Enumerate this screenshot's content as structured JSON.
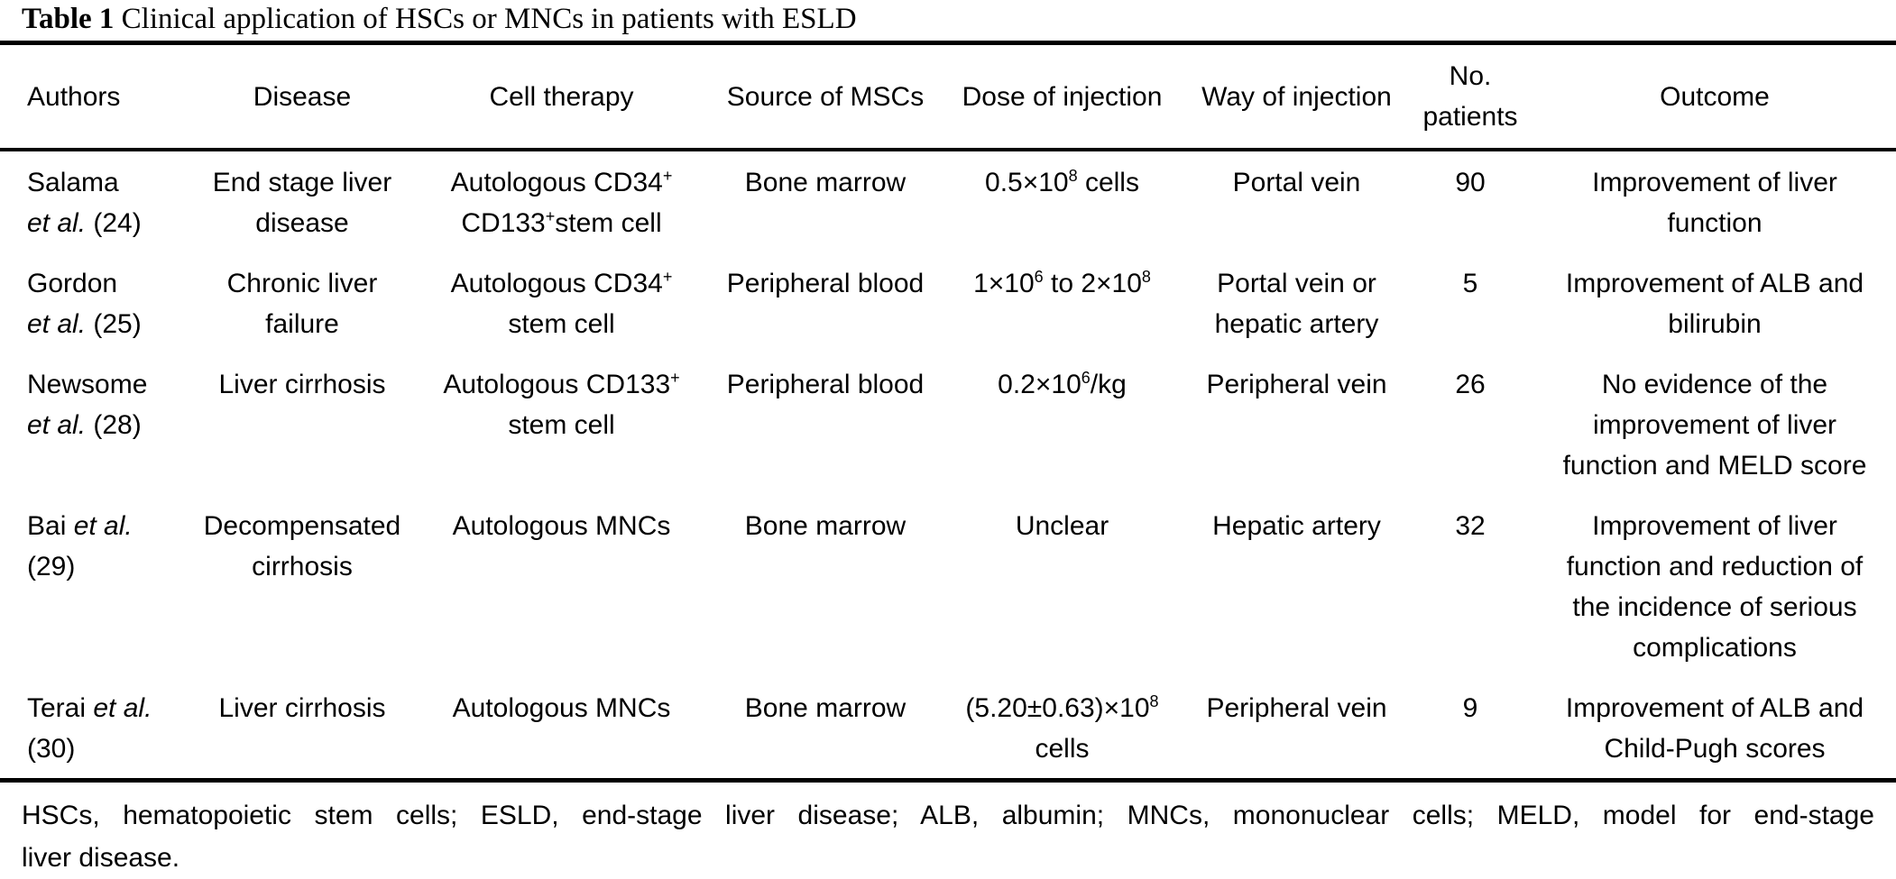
{
  "caption": {
    "label": "Table 1",
    "text": " Clinical application of HSCs or MNCs in patients with ESLD"
  },
  "table": {
    "columns": [
      {
        "key": "authors",
        "label": "Authors"
      },
      {
        "key": "disease",
        "label": "Disease"
      },
      {
        "key": "cell_therapy",
        "label": "Cell therapy"
      },
      {
        "key": "source",
        "label": "Source of MSCs"
      },
      {
        "key": "dose",
        "label": "Dose of injection"
      },
      {
        "key": "way",
        "label": "Way of injection"
      },
      {
        "key": "patients",
        "label": [
          "No.",
          "patients"
        ]
      },
      {
        "key": "outcome",
        "label": "Outcome"
      }
    ],
    "rows": [
      {
        "authors": [
          [
            {
              "t": "Salama"
            }
          ],
          [
            {
              "t": "et al.",
              "i": true
            },
            {
              "t": " (24)"
            }
          ]
        ],
        "disease": [
          [
            {
              "t": "End stage liver"
            }
          ],
          [
            {
              "t": "disease"
            }
          ]
        ],
        "cell_therapy": [
          [
            {
              "t": "Autologous CD34"
            },
            {
              "t": "+",
              "s": true
            }
          ],
          [
            {
              "t": "CD133"
            },
            {
              "t": "+",
              "s": true
            },
            {
              "t": "stem cell"
            }
          ]
        ],
        "source": [
          [
            {
              "t": "Bone marrow"
            }
          ]
        ],
        "dose": [
          [
            {
              "t": "0.5×10"
            },
            {
              "t": "8",
              "s": true
            },
            {
              "t": " cells"
            }
          ]
        ],
        "way": [
          [
            {
              "t": "Portal vein"
            }
          ]
        ],
        "patients": [
          [
            {
              "t": "90"
            }
          ]
        ],
        "outcome": [
          [
            {
              "t": "Improvement of liver"
            }
          ],
          [
            {
              "t": "function"
            }
          ]
        ]
      },
      {
        "authors": [
          [
            {
              "t": "Gordon"
            }
          ],
          [
            {
              "t": "et al.",
              "i": true
            },
            {
              "t": " (25)"
            }
          ]
        ],
        "disease": [
          [
            {
              "t": "Chronic liver"
            }
          ],
          [
            {
              "t": "failure"
            }
          ]
        ],
        "cell_therapy": [
          [
            {
              "t": "Autologous CD34"
            },
            {
              "t": "+",
              "s": true
            }
          ],
          [
            {
              "t": "stem cell"
            }
          ]
        ],
        "source": [
          [
            {
              "t": "Peripheral blood"
            }
          ]
        ],
        "dose": [
          [
            {
              "t": "1×10"
            },
            {
              "t": "6",
              "s": true
            },
            {
              "t": " to 2×10"
            },
            {
              "t": "8",
              "s": true
            }
          ]
        ],
        "way": [
          [
            {
              "t": "Portal vein or"
            }
          ],
          [
            {
              "t": "hepatic artery"
            }
          ]
        ],
        "patients": [
          [
            {
              "t": "5"
            }
          ]
        ],
        "outcome": [
          [
            {
              "t": "Improvement of ALB and"
            }
          ],
          [
            {
              "t": "bilirubin"
            }
          ]
        ]
      },
      {
        "authors": [
          [
            {
              "t": "Newsome"
            }
          ],
          [
            {
              "t": "et al.",
              "i": true
            },
            {
              "t": " (28)"
            }
          ]
        ],
        "disease": [
          [
            {
              "t": "Liver cirrhosis"
            }
          ]
        ],
        "cell_therapy": [
          [
            {
              "t": "Autologous CD133"
            },
            {
              "t": "+",
              "s": true
            }
          ],
          [
            {
              "t": "stem cell"
            }
          ]
        ],
        "source": [
          [
            {
              "t": "Peripheral blood"
            }
          ]
        ],
        "dose": [
          [
            {
              "t": "0.2×10"
            },
            {
              "t": "6",
              "s": true
            },
            {
              "t": "/kg"
            }
          ]
        ],
        "way": [
          [
            {
              "t": "Peripheral vein"
            }
          ]
        ],
        "patients": [
          [
            {
              "t": "26"
            }
          ]
        ],
        "outcome": [
          [
            {
              "t": "No evidence of the"
            }
          ],
          [
            {
              "t": "improvement of liver"
            }
          ],
          [
            {
              "t": "function and MELD score"
            }
          ]
        ]
      },
      {
        "authors": [
          [
            {
              "t": "Bai "
            },
            {
              "t": "et al.",
              "i": true
            }
          ],
          [
            {
              "t": "(29)"
            }
          ]
        ],
        "disease": [
          [
            {
              "t": "Decompensated"
            }
          ],
          [
            {
              "t": "cirrhosis"
            }
          ]
        ],
        "cell_therapy": [
          [
            {
              "t": "Autologous MNCs"
            }
          ]
        ],
        "source": [
          [
            {
              "t": "Bone marrow"
            }
          ]
        ],
        "dose": [
          [
            {
              "t": "Unclear"
            }
          ]
        ],
        "way": [
          [
            {
              "t": "Hepatic artery"
            }
          ]
        ],
        "patients": [
          [
            {
              "t": "32"
            }
          ]
        ],
        "outcome": [
          [
            {
              "t": "Improvement of liver"
            }
          ],
          [
            {
              "t": "function and reduction of"
            }
          ],
          [
            {
              "t": "the incidence of serious"
            }
          ],
          [
            {
              "t": "complications"
            }
          ]
        ]
      },
      {
        "authors": [
          [
            {
              "t": "Terai "
            },
            {
              "t": "et al.",
              "i": true
            }
          ],
          [
            {
              "t": "(30)"
            }
          ]
        ],
        "disease": [
          [
            {
              "t": "Liver cirrhosis"
            }
          ]
        ],
        "cell_therapy": [
          [
            {
              "t": "Autologous MNCs"
            }
          ]
        ],
        "source": [
          [
            {
              "t": "Bone marrow"
            }
          ]
        ],
        "dose": [
          [
            {
              "t": "(5.20±0.63)×10"
            },
            {
              "t": "8",
              "s": true
            }
          ],
          [
            {
              "t": "cells"
            }
          ]
        ],
        "way": [
          [
            {
              "t": "Peripheral vein"
            }
          ]
        ],
        "patients": [
          [
            {
              "t": "9"
            }
          ]
        ],
        "outcome": [
          [
            {
              "t": "Improvement of ALB and"
            }
          ],
          [
            {
              "t": "Child-Pugh scores"
            }
          ]
        ]
      }
    ]
  },
  "footnote": {
    "lines": [
      "HSCs, hematopoietic stem cells; ESLD, end-stage liver disease; ALB, albumin; MNCs, mononuclear cells; MELD, model for end-stage",
      "liver disease."
    ]
  },
  "colors": {
    "text": "#000000",
    "background": "#ffffff",
    "rule": "#000000"
  }
}
